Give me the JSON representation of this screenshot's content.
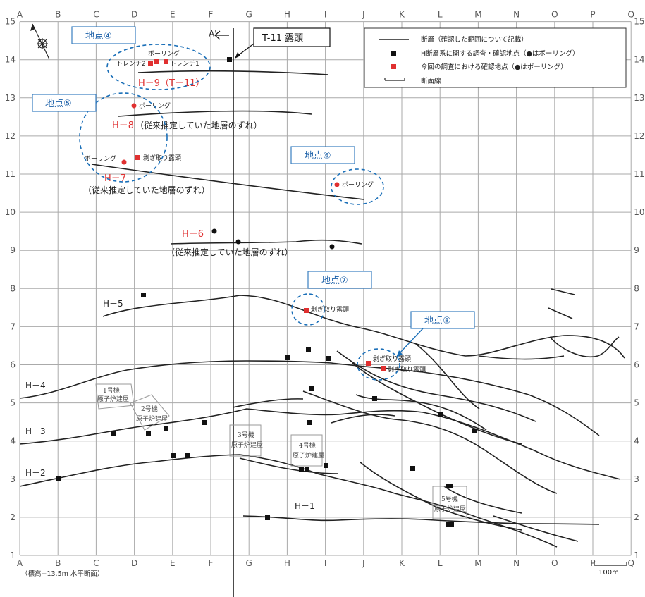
{
  "axes": {
    "columns": [
      "A",
      "B",
      "C",
      "D",
      "E",
      "F",
      "G",
      "H",
      "I",
      "J",
      "K",
      "L",
      "M",
      "N",
      "O",
      "P",
      "Q"
    ],
    "rows": [
      "1",
      "2",
      "3",
      "4",
      "5",
      "6",
      "7",
      "8",
      "9",
      "10",
      "11",
      "12",
      "13",
      "14",
      "15"
    ]
  },
  "legend": {
    "items": [
      {
        "symbol": "line",
        "label": "断層（確認した範囲について記載）"
      },
      {
        "symbol": "black-square",
        "label": "H断層系に関する調査・確認地点（●はボーリング）"
      },
      {
        "symbol": "red-square",
        "label": "今回の調査における確認地点（●はボーリング）"
      },
      {
        "symbol": "section-line",
        "label": "断面線"
      }
    ]
  },
  "callout": {
    "label": "T-11 露頭"
  },
  "section_line_label": "A'",
  "sites": [
    {
      "label": "地点④"
    },
    {
      "label": "地点⑤"
    },
    {
      "label": "地点⑥"
    },
    {
      "label": "地点⑦"
    },
    {
      "label": "地点⑧"
    }
  ],
  "faults": {
    "h9": "H－9（T－11）",
    "h8": "H－8",
    "h8_note": "（従来推定していた地層のずれ）",
    "h7": "H－7",
    "h7_note": "（従来推定していた地層のずれ）",
    "h6": "H－6",
    "h6_note": "（従来推定していた地層のずれ）",
    "h5": "H－5",
    "h4": "H－4",
    "h3": "H－3",
    "h2": "H－2",
    "h1": "H－1"
  },
  "point_labels": {
    "boring": "ボーリング",
    "trench1": "トレンチ1",
    "trench2": "トレンチ2",
    "stripped_outcrop": "剥ぎ取り露頭"
  },
  "buildings": [
    {
      "line1": "1号機",
      "line2": "原子炉建屋"
    },
    {
      "line1": "2号機",
      "line2": "原子炉建屋"
    },
    {
      "line1": "3号機",
      "line2": "原子炉建屋"
    },
    {
      "line1": "4号機",
      "line2": "原子炉建屋"
    },
    {
      "line1": "5号機",
      "line2": "原子炉建屋"
    }
  ],
  "footnote": "（標高−13.5m 水平断面）",
  "scale_bar": "100m",
  "colors": {
    "site_blue": "#1a5fa8",
    "red_point": "#e03030",
    "black_point": "#111111",
    "grid": "#aaaaaa"
  }
}
